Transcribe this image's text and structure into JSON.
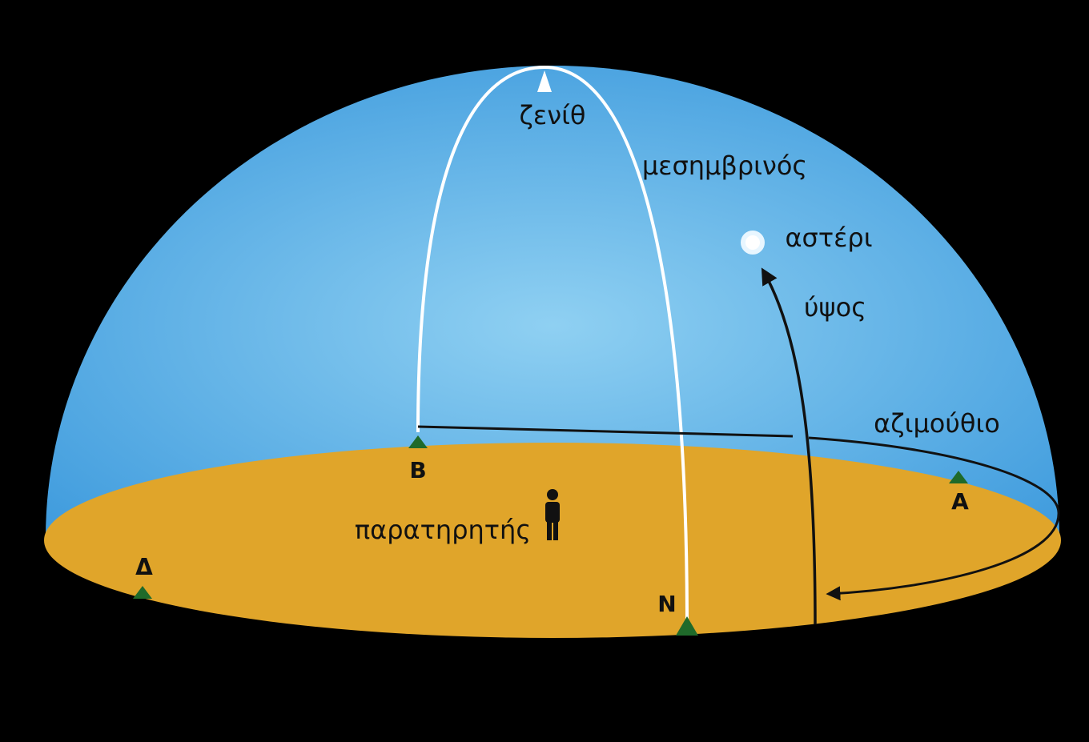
{
  "labels": {
    "zenith": "ζενίθ",
    "meridian": "μεσημβρινός",
    "star": "αστέρι",
    "altitude": "ύψος",
    "azimuth": "αζιμούθιο",
    "observer": "παρατηρητής"
  },
  "cardinal_points": {
    "north": "B",
    "east": "A",
    "south": "N",
    "west": "Δ"
  }
}
